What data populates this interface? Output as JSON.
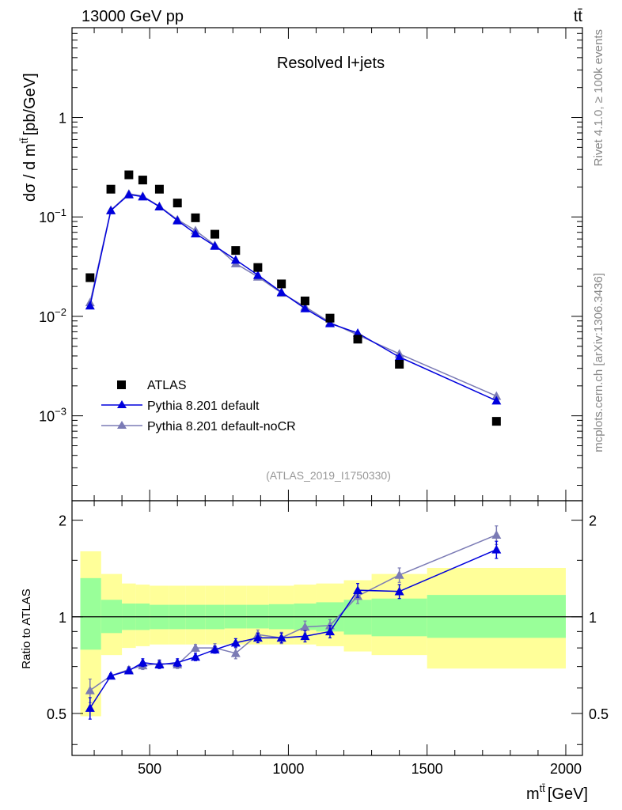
{
  "header": {
    "left": "13000 GeV pp",
    "right": "tt̄"
  },
  "side_labels": {
    "rivet": "Rivet 4.1.0, ≥ 100k events",
    "mcplots": "mcplots.cern.ch [arXiv:1306.3436]"
  },
  "chart_data": {
    "type": "scatter",
    "title": "Resolved l+jets",
    "analysis_id": "(ATLAS_2019_I1750330)",
    "xlabel": "m",
    "xlabel_super": "tt̄",
    "xlabel_unit": "[GeV]",
    "ylabel": "dσ / d m",
    "ylabel_super": "tt̄",
    "ylabel_unit": "[pb/GeV]",
    "ratio_ylabel": "Ratio to ATLAS",
    "xlim": [
      220,
      2060
    ],
    "ylim": [
      0.00014,
      8
    ],
    "ratio_ylim": [
      0.37,
      2.3
    ],
    "x_ticks": [
      500,
      1000,
      1500,
      2000
    ],
    "x_tick_labels": [
      "500",
      "1000",
      "1500",
      "2000"
    ],
    "y_ticks": [
      0.001,
      0.01,
      0.1,
      1
    ],
    "y_tick_labels": [
      {
        "base": "10",
        "exp": "−3"
      },
      {
        "base": "10",
        "exp": "−2"
      },
      {
        "base": "10",
        "exp": "−1"
      },
      {
        "base": "1",
        "exp": ""
      }
    ],
    "ratio_ticks": [
      0.5,
      1,
      2
    ],
    "ratio_tick_labels": [
      "0.5",
      "1",
      "2"
    ],
    "legend": [
      {
        "label": "ATLAS",
        "color": "#000000",
        "marker": "square"
      },
      {
        "label": "Pythia 8.201 default",
        "color": "#0000dd",
        "marker": "triangle"
      },
      {
        "label": "Pythia 8.201 default-noCR",
        "color": "#7b7bb5",
        "marker": "triangle"
      }
    ],
    "bins": [
      {
        "lo": 250,
        "hi": 325
      },
      {
        "lo": 325,
        "hi": 400
      },
      {
        "lo": 400,
        "hi": 450
      },
      {
        "lo": 450,
        "hi": 500
      },
      {
        "lo": 500,
        "hi": 570
      },
      {
        "lo": 570,
        "hi": 630
      },
      {
        "lo": 630,
        "hi": 700
      },
      {
        "lo": 700,
        "hi": 770
      },
      {
        "lo": 770,
        "hi": 850
      },
      {
        "lo": 850,
        "hi": 930
      },
      {
        "lo": 930,
        "hi": 1020
      },
      {
        "lo": 1020,
        "hi": 1100
      },
      {
        "lo": 1100,
        "hi": 1200
      },
      {
        "lo": 1200,
        "hi": 1300
      },
      {
        "lo": 1300,
        "hi": 1500
      },
      {
        "lo": 1500,
        "hi": 2000
      }
    ],
    "x": [
      285,
      360,
      425,
      475,
      535,
      600,
      665,
      735,
      810,
      890,
      975,
      1060,
      1150,
      1250,
      1400,
      1750
    ],
    "atlas_values": [
      0.0245,
      0.19,
      0.265,
      0.235,
      0.19,
      0.138,
      0.098,
      0.067,
      0.046,
      0.031,
      0.0212,
      0.0143,
      0.0096,
      0.0059,
      0.0033,
      0.00088
    ],
    "ratio_band_inner": [
      {
        "lo": 0.79,
        "hi": 1.32
      },
      {
        "lo": 0.89,
        "hi": 1.13
      },
      {
        "lo": 0.91,
        "hi": 1.1
      },
      {
        "lo": 0.91,
        "hi": 1.1
      },
      {
        "lo": 0.915,
        "hi": 1.09
      },
      {
        "lo": 0.915,
        "hi": 1.09
      },
      {
        "lo": 0.915,
        "hi": 1.09
      },
      {
        "lo": 0.915,
        "hi": 1.09
      },
      {
        "lo": 0.92,
        "hi": 1.09
      },
      {
        "lo": 0.92,
        "hi": 1.09
      },
      {
        "lo": 0.915,
        "hi": 1.095
      },
      {
        "lo": 0.91,
        "hi": 1.1
      },
      {
        "lo": 0.9,
        "hi": 1.11
      },
      {
        "lo": 0.88,
        "hi": 1.13
      },
      {
        "lo": 0.87,
        "hi": 1.14
      },
      {
        "lo": 0.86,
        "hi": 1.17
      }
    ],
    "ratio_band_outer": [
      {
        "lo": 0.49,
        "hi": 1.6
      },
      {
        "lo": 0.76,
        "hi": 1.36
      },
      {
        "lo": 0.8,
        "hi": 1.27
      },
      {
        "lo": 0.81,
        "hi": 1.26
      },
      {
        "lo": 0.82,
        "hi": 1.25
      },
      {
        "lo": 0.82,
        "hi": 1.25
      },
      {
        "lo": 0.82,
        "hi": 1.25
      },
      {
        "lo": 0.82,
        "hi": 1.25
      },
      {
        "lo": 0.82,
        "hi": 1.25
      },
      {
        "lo": 0.82,
        "hi": 1.25
      },
      {
        "lo": 0.82,
        "hi": 1.25
      },
      {
        "lo": 0.82,
        "hi": 1.26
      },
      {
        "lo": 0.81,
        "hi": 1.27
      },
      {
        "lo": 0.78,
        "hi": 1.3
      },
      {
        "lo": 0.76,
        "hi": 1.36
      },
      {
        "lo": 0.69,
        "hi": 1.42
      }
    ],
    "series": [
      {
        "name": "Pythia 8.201 default",
        "color": "#0000dd",
        "values": [
          0.0128,
          0.116,
          0.168,
          0.16,
          0.127,
          0.092,
          0.068,
          0.051,
          0.037,
          0.026,
          0.0175,
          0.012,
          0.0085,
          0.0068,
          0.0039,
          0.00142
        ],
        "ratio": [
          0.52,
          0.655,
          0.68,
          0.72,
          0.71,
          0.72,
          0.75,
          0.79,
          0.83,
          0.86,
          0.86,
          0.87,
          0.9,
          1.21,
          1.2,
          1.62
        ],
        "ratio_err": [
          0.04,
          0.01,
          0.015,
          0.02,
          0.02,
          0.02,
          0.02,
          0.02,
          0.025,
          0.03,
          0.03,
          0.035,
          0.04,
          0.06,
          0.06,
          0.1
        ]
      },
      {
        "name": "Pythia 8.201 default-noCR",
        "color": "#7b7bb5",
        "values": [
          0.0138,
          0.117,
          0.171,
          0.162,
          0.128,
          0.094,
          0.073,
          0.052,
          0.034,
          0.025,
          0.0172,
          0.0125,
          0.0087,
          0.0065,
          0.0042,
          0.00158
        ],
        "ratio": [
          0.59,
          0.655,
          0.685,
          0.705,
          0.715,
          0.71,
          0.8,
          0.8,
          0.77,
          0.88,
          0.86,
          0.93,
          0.94,
          1.16,
          1.35,
          1.8
        ],
        "ratio_err": [
          0.05,
          0.01,
          0.015,
          0.02,
          0.02,
          0.02,
          0.02,
          0.025,
          0.03,
          0.03,
          0.035,
          0.04,
          0.04,
          0.06,
          0.07,
          0.12
        ]
      }
    ]
  }
}
